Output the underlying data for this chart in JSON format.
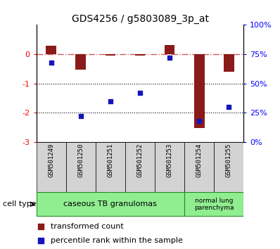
{
  "title": "GDS4256 / g5803089_3p_at",
  "samples": [
    "GSM501249",
    "GSM501250",
    "GSM501251",
    "GSM501252",
    "GSM501253",
    "GSM501254",
    "GSM501255"
  ],
  "transformed_count": [
    0.28,
    -0.52,
    -0.04,
    -0.04,
    0.32,
    -2.52,
    -0.6
  ],
  "percentile_rank": [
    68,
    22,
    35,
    42,
    72,
    18,
    30
  ],
  "ylim_left": [
    -3,
    1
  ],
  "ylim_right": [
    0,
    100
  ],
  "yticks_left": [
    -3,
    -2,
    -1,
    0
  ],
  "yticks_right": [
    0,
    25,
    50,
    75,
    100
  ],
  "yticklabels_right": [
    "0%",
    "25%",
    "50%",
    "75%",
    "100%"
  ],
  "bar_color": "#8B1A1A",
  "dot_color": "#1515BB",
  "dashed_line_color": "#CD5C5C",
  "group1_color": "#90EE90",
  "group2_color": "#90EE90",
  "group1_label": "caseous TB granulomas",
  "group2_label": "normal lung\nparenchyma",
  "legend_bar_label": "transformed count",
  "legend_dot_label": "percentile rank within the sample",
  "cell_type_label": "cell type",
  "background_color": "#ffffff",
  "label_box_color": "#d3d3d3"
}
